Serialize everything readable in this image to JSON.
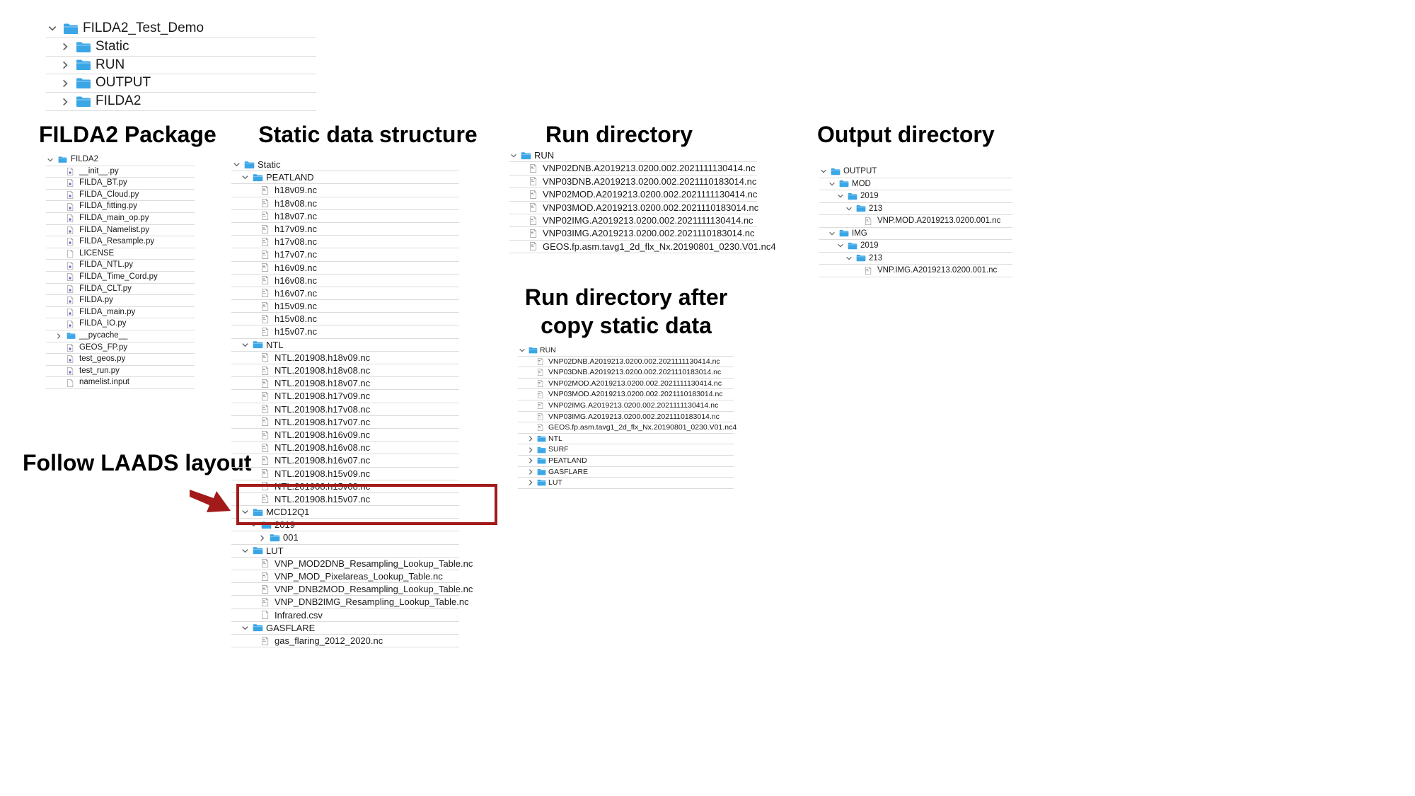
{
  "headings": {
    "package": "FILDA2 Package",
    "static": "Static data structure",
    "run": "Run directory",
    "output": "Output directory",
    "run_after_line1": "Run directory after",
    "run_after_line2": "copy static data",
    "follow": "Follow LAADS layout"
  },
  "colors": {
    "folder": "#3ba6e6",
    "highlight": "#a31a1a",
    "separator": "#dcdcdc"
  },
  "trees": {
    "top": [
      {
        "level": 0,
        "chev": "down",
        "icon": "folder",
        "label": "FILDA2_Test_Demo"
      },
      {
        "level": 1,
        "chev": "right",
        "icon": "folder",
        "label": "Static"
      },
      {
        "level": 1,
        "chev": "right",
        "icon": "folder",
        "label": "RUN"
      },
      {
        "level": 1,
        "chev": "right",
        "icon": "folder",
        "label": "OUTPUT"
      },
      {
        "level": 1,
        "chev": "right",
        "icon": "folder",
        "label": "FILDA2"
      }
    ],
    "package": [
      {
        "level": 0,
        "chev": "down",
        "icon": "folder",
        "label": "FILDA2"
      },
      {
        "level": 1,
        "chev": "",
        "icon": "py",
        "label": "__init__.py"
      },
      {
        "level": 1,
        "chev": "",
        "icon": "py",
        "label": "FILDA_BT.py"
      },
      {
        "level": 1,
        "chev": "",
        "icon": "py",
        "label": "FILDA_Cloud.py"
      },
      {
        "level": 1,
        "chev": "",
        "icon": "py",
        "label": "FILDA_fitting.py"
      },
      {
        "level": 1,
        "chev": "",
        "icon": "py",
        "label": "FILDA_main_op.py"
      },
      {
        "level": 1,
        "chev": "",
        "icon": "py",
        "label": "FILDA_Namelist.py"
      },
      {
        "level": 1,
        "chev": "",
        "icon": "py",
        "label": "FILDA_Resample.py"
      },
      {
        "level": 1,
        "chev": "",
        "icon": "doc",
        "label": "LICENSE"
      },
      {
        "level": 1,
        "chev": "",
        "icon": "py",
        "label": "FILDA_NTL.py"
      },
      {
        "level": 1,
        "chev": "",
        "icon": "py",
        "label": "FILDA_Time_Cord.py"
      },
      {
        "level": 1,
        "chev": "",
        "icon": "py",
        "label": "FILDA_CLT.py"
      },
      {
        "level": 1,
        "chev": "",
        "icon": "py",
        "label": "FILDA.py"
      },
      {
        "level": 1,
        "chev": "",
        "icon": "py",
        "label": "FILDA_main.py"
      },
      {
        "level": 1,
        "chev": "",
        "icon": "py",
        "label": "FILDA_IO.py"
      },
      {
        "level": 1,
        "chev": "right",
        "icon": "folder",
        "label": "__pycache__"
      },
      {
        "level": 1,
        "chev": "",
        "icon": "py",
        "label": "GEOS_FP.py"
      },
      {
        "level": 1,
        "chev": "",
        "icon": "py",
        "label": "test_geos.py"
      },
      {
        "level": 1,
        "chev": "",
        "icon": "py",
        "label": "test_run.py"
      },
      {
        "level": 1,
        "chev": "",
        "icon": "doc",
        "label": "namelist.input"
      }
    ],
    "static": [
      {
        "level": 0,
        "chev": "down",
        "icon": "folder",
        "label": "Static"
      },
      {
        "level": 1,
        "chev": "down",
        "icon": "folder",
        "label": "PEATLAND"
      },
      {
        "level": 2,
        "chev": "",
        "icon": "file",
        "label": "h18v09.nc"
      },
      {
        "level": 2,
        "chev": "",
        "icon": "file",
        "label": "h18v08.nc"
      },
      {
        "level": 2,
        "chev": "",
        "icon": "file",
        "label": "h18v07.nc"
      },
      {
        "level": 2,
        "chev": "",
        "icon": "file",
        "label": "h17v09.nc"
      },
      {
        "level": 2,
        "chev": "",
        "icon": "file",
        "label": "h17v08.nc"
      },
      {
        "level": 2,
        "chev": "",
        "icon": "file",
        "label": "h17v07.nc"
      },
      {
        "level": 2,
        "chev": "",
        "icon": "file",
        "label": "h16v09.nc"
      },
      {
        "level": 2,
        "chev": "",
        "icon": "file",
        "label": "h16v08.nc"
      },
      {
        "level": 2,
        "chev": "",
        "icon": "file",
        "label": "h16v07.nc"
      },
      {
        "level": 2,
        "chev": "",
        "icon": "file",
        "label": "h15v09.nc"
      },
      {
        "level": 2,
        "chev": "",
        "icon": "file",
        "label": "h15v08.nc"
      },
      {
        "level": 2,
        "chev": "",
        "icon": "file",
        "label": "h15v07.nc"
      },
      {
        "level": 1,
        "chev": "down",
        "icon": "folder",
        "label": "NTL"
      },
      {
        "level": 2,
        "chev": "",
        "icon": "file",
        "label": "NTL.201908.h18v09.nc"
      },
      {
        "level": 2,
        "chev": "",
        "icon": "file",
        "label": "NTL.201908.h18v08.nc"
      },
      {
        "level": 2,
        "chev": "",
        "icon": "file",
        "label": "NTL.201908.h18v07.nc"
      },
      {
        "level": 2,
        "chev": "",
        "icon": "file",
        "label": "NTL.201908.h17v09.nc"
      },
      {
        "level": 2,
        "chev": "",
        "icon": "file",
        "label": "NTL.201908.h17v08.nc"
      },
      {
        "level": 2,
        "chev": "",
        "icon": "file",
        "label": "NTL.201908.h17v07.nc"
      },
      {
        "level": 2,
        "chev": "",
        "icon": "file",
        "label": "NTL.201908.h16v09.nc"
      },
      {
        "level": 2,
        "chev": "",
        "icon": "file",
        "label": "NTL.201908.h16v08.nc"
      },
      {
        "level": 2,
        "chev": "",
        "icon": "file",
        "label": "NTL.201908.h16v07.nc"
      },
      {
        "level": 2,
        "chev": "",
        "icon": "file",
        "label": "NTL.201908.h15v09.nc"
      },
      {
        "level": 2,
        "chev": "",
        "icon": "file",
        "label": "NTL.201908.h15v08.nc"
      },
      {
        "level": 2,
        "chev": "",
        "icon": "file",
        "label": "NTL.201908.h15v07.nc"
      },
      {
        "level": 1,
        "chev": "down",
        "icon": "folder",
        "label": "MCD12Q1"
      },
      {
        "level": 2,
        "chev": "down",
        "icon": "folder",
        "label": "2019"
      },
      {
        "level": 3,
        "chev": "right",
        "icon": "folder",
        "label": "001"
      },
      {
        "level": 1,
        "chev": "down",
        "icon": "folder",
        "label": "LUT"
      },
      {
        "level": 2,
        "chev": "",
        "icon": "file",
        "label": "VNP_MOD2DNB_Resampling_Lookup_Table.nc"
      },
      {
        "level": 2,
        "chev": "",
        "icon": "file",
        "label": "VNP_MOD_Pixelareas_Lookup_Table.nc"
      },
      {
        "level": 2,
        "chev": "",
        "icon": "file",
        "label": "VNP_DNB2MOD_Resampling_Lookup_Table.nc"
      },
      {
        "level": 2,
        "chev": "",
        "icon": "file",
        "label": "VNP_DNB2IMG_Resampling_Lookup_Table.nc"
      },
      {
        "level": 2,
        "chev": "",
        "icon": "doc",
        "label": "Infrared.csv"
      },
      {
        "level": 1,
        "chev": "down",
        "icon": "folder",
        "label": "GASFLARE"
      },
      {
        "level": 2,
        "chev": "",
        "icon": "file",
        "label": "gas_flaring_2012_2020.nc"
      }
    ],
    "run": [
      {
        "level": 0,
        "chev": "down",
        "icon": "folder",
        "label": "RUN"
      },
      {
        "level": 1,
        "chev": "",
        "icon": "file",
        "label": "VNP02DNB.A2019213.0200.002.2021111130414.nc"
      },
      {
        "level": 1,
        "chev": "",
        "icon": "file",
        "label": "VNP03DNB.A2019213.0200.002.2021110183014.nc"
      },
      {
        "level": 1,
        "chev": "",
        "icon": "file",
        "label": "VNP02MOD.A2019213.0200.002.2021111130414.nc"
      },
      {
        "level": 1,
        "chev": "",
        "icon": "file",
        "label": "VNP03MOD.A2019213.0200.002.2021110183014.nc"
      },
      {
        "level": 1,
        "chev": "",
        "icon": "file",
        "label": "VNP02IMG.A2019213.0200.002.2021111130414.nc"
      },
      {
        "level": 1,
        "chev": "",
        "icon": "file",
        "label": "VNP03IMG.A2019213.0200.002.2021110183014.nc"
      },
      {
        "level": 1,
        "chev": "",
        "icon": "file",
        "label": "GEOS.fp.asm.tavg1_2d_flx_Nx.20190801_0230.V01.nc4"
      }
    ],
    "run_after": [
      {
        "level": 0,
        "chev": "down",
        "icon": "folder",
        "label": "RUN"
      },
      {
        "level": 1,
        "chev": "",
        "icon": "file",
        "label": "VNP02DNB.A2019213.0200.002.2021111130414.nc"
      },
      {
        "level": 1,
        "chev": "",
        "icon": "file",
        "label": "VNP03DNB.A2019213.0200.002.2021110183014.nc"
      },
      {
        "level": 1,
        "chev": "",
        "icon": "file",
        "label": "VNP02MOD.A2019213.0200.002.2021111130414.nc"
      },
      {
        "level": 1,
        "chev": "",
        "icon": "file",
        "label": "VNP03MOD.A2019213.0200.002.2021110183014.nc"
      },
      {
        "level": 1,
        "chev": "",
        "icon": "file",
        "label": "VNP02IMG.A2019213.0200.002.2021111130414.nc"
      },
      {
        "level": 1,
        "chev": "",
        "icon": "file",
        "label": "VNP03IMG.A2019213.0200.002.2021110183014.nc"
      },
      {
        "level": 1,
        "chev": "",
        "icon": "file",
        "label": "GEOS.fp.asm.tavg1_2d_flx_Nx.20190801_0230.V01.nc4"
      },
      {
        "level": 1,
        "chev": "right",
        "icon": "folder",
        "label": "NTL"
      },
      {
        "level": 1,
        "chev": "right",
        "icon": "folder",
        "label": "SURF"
      },
      {
        "level": 1,
        "chev": "right",
        "icon": "folder",
        "label": "PEATLAND"
      },
      {
        "level": 1,
        "chev": "right",
        "icon": "folder",
        "label": "GASFLARE"
      },
      {
        "level": 1,
        "chev": "right",
        "icon": "folder",
        "label": "LUT"
      }
    ],
    "output": [
      {
        "level": 0,
        "chev": "down",
        "icon": "folder",
        "label": "OUTPUT"
      },
      {
        "level": 1,
        "chev": "down",
        "icon": "folder",
        "label": "MOD"
      },
      {
        "level": 2,
        "chev": "down",
        "icon": "folder",
        "label": "2019"
      },
      {
        "level": 3,
        "chev": "down",
        "icon": "folder",
        "label": "213"
      },
      {
        "level": 4,
        "chev": "",
        "icon": "file",
        "label": "VNP.MOD.A2019213.0200.001.nc"
      },
      {
        "level": 1,
        "chev": "down",
        "icon": "folder",
        "label": "IMG"
      },
      {
        "level": 2,
        "chev": "down",
        "icon": "folder",
        "label": "2019"
      },
      {
        "level": 3,
        "chev": "down",
        "icon": "folder",
        "label": "213"
      },
      {
        "level": 4,
        "chev": "",
        "icon": "file",
        "label": "VNP.IMG.A2019213.0200.001.nc"
      }
    ]
  }
}
